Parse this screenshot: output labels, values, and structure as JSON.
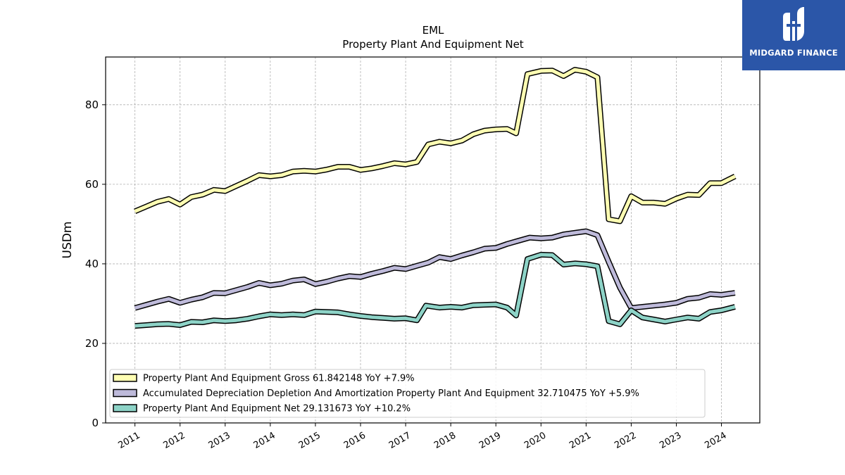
{
  "brand": {
    "name": "MIDGARD FINANCE",
    "color": "#2b56a8"
  },
  "chart_data": {
    "type": "line",
    "title": "EML",
    "subtitle": "Property Plant And Equipment Net",
    "xlabel": "",
    "ylabel": "USDm",
    "ylim": [
      0,
      92
    ],
    "yticks": [
      0,
      20,
      40,
      60,
      80
    ],
    "xlim": [
      2010.35,
      2024.85
    ],
    "xticks": [
      2011,
      2012,
      2013,
      2014,
      2015,
      2016,
      2017,
      2018,
      2019,
      2020,
      2021,
      2022,
      2023,
      2024
    ],
    "grid": true,
    "legend_position": "lower-left",
    "series": [
      {
        "name": "Property Plant And Equipment Gross",
        "legend": "Property Plant And Equipment Gross  61.842148 YoY +7.9%",
        "color": "#ffffb3",
        "points": [
          [
            2011.0,
            53.2
          ],
          [
            2011.25,
            54.4
          ],
          [
            2011.5,
            55.6
          ],
          [
            2011.75,
            56.3
          ],
          [
            2012.0,
            54.9
          ],
          [
            2012.25,
            56.8
          ],
          [
            2012.5,
            57.4
          ],
          [
            2012.75,
            58.6
          ],
          [
            2013.0,
            58.3
          ],
          [
            2013.25,
            59.6
          ],
          [
            2013.5,
            60.9
          ],
          [
            2013.75,
            62.3
          ],
          [
            2014.0,
            62.0
          ],
          [
            2014.25,
            62.3
          ],
          [
            2014.5,
            63.2
          ],
          [
            2014.75,
            63.4
          ],
          [
            2015.0,
            63.2
          ],
          [
            2015.25,
            63.7
          ],
          [
            2015.5,
            64.4
          ],
          [
            2015.75,
            64.4
          ],
          [
            2016.0,
            63.6
          ],
          [
            2016.25,
            64.0
          ],
          [
            2016.5,
            64.6
          ],
          [
            2016.75,
            65.3
          ],
          [
            2017.0,
            65.0
          ],
          [
            2017.25,
            65.6
          ],
          [
            2017.5,
            70.0
          ],
          [
            2017.75,
            70.7
          ],
          [
            2018.0,
            70.3
          ],
          [
            2018.25,
            71.0
          ],
          [
            2018.5,
            72.6
          ],
          [
            2018.75,
            73.5
          ],
          [
            2019.0,
            73.8
          ],
          [
            2019.25,
            73.9
          ],
          [
            2019.45,
            72.8
          ],
          [
            2019.7,
            87.7
          ],
          [
            2020.0,
            88.5
          ],
          [
            2020.25,
            88.6
          ],
          [
            2020.5,
            87.2
          ],
          [
            2020.75,
            88.8
          ],
          [
            2021.0,
            88.3
          ],
          [
            2021.25,
            86.9
          ],
          [
            2021.5,
            51.2
          ],
          [
            2021.75,
            50.7
          ],
          [
            2022.0,
            57.0
          ],
          [
            2022.25,
            55.4
          ],
          [
            2022.5,
            55.4
          ],
          [
            2022.75,
            55.1
          ],
          [
            2023.0,
            56.4
          ],
          [
            2023.25,
            57.4
          ],
          [
            2023.5,
            57.3
          ],
          [
            2023.75,
            60.3
          ],
          [
            2024.0,
            60.3
          ],
          [
            2024.3,
            62.0
          ]
        ]
      },
      {
        "name": "Accumulated Depreciation Depletion And Amortization Property Plant And Equipment",
        "legend": "Accumulated Depreciation Depletion And Amortization Property Plant And Equipment  32.710475 YoY +5.9%",
        "color": "#bebada",
        "points": [
          [
            2011.0,
            28.9
          ],
          [
            2011.25,
            29.7
          ],
          [
            2011.5,
            30.5
          ],
          [
            2011.75,
            31.2
          ],
          [
            2012.0,
            30.2
          ],
          [
            2012.25,
            31.0
          ],
          [
            2012.5,
            31.6
          ],
          [
            2012.75,
            32.7
          ],
          [
            2013.0,
            32.6
          ],
          [
            2013.25,
            33.4
          ],
          [
            2013.5,
            34.2
          ],
          [
            2013.75,
            35.2
          ],
          [
            2014.0,
            34.6
          ],
          [
            2014.25,
            35.0
          ],
          [
            2014.5,
            35.8
          ],
          [
            2014.75,
            36.1
          ],
          [
            2015.0,
            34.9
          ],
          [
            2015.25,
            35.5
          ],
          [
            2015.5,
            36.3
          ],
          [
            2015.75,
            36.9
          ],
          [
            2016.0,
            36.7
          ],
          [
            2016.25,
            37.5
          ],
          [
            2016.5,
            38.2
          ],
          [
            2016.75,
            39.0
          ],
          [
            2017.0,
            38.7
          ],
          [
            2017.25,
            39.5
          ],
          [
            2017.5,
            40.3
          ],
          [
            2017.75,
            41.7
          ],
          [
            2018.0,
            41.2
          ],
          [
            2018.25,
            42.1
          ],
          [
            2018.5,
            42.9
          ],
          [
            2018.75,
            43.8
          ],
          [
            2019.0,
            44.0
          ],
          [
            2019.25,
            45.0
          ],
          [
            2019.5,
            45.8
          ],
          [
            2019.75,
            46.6
          ],
          [
            2020.0,
            46.4
          ],
          [
            2020.25,
            46.6
          ],
          [
            2020.5,
            47.4
          ],
          [
            2020.75,
            47.8
          ],
          [
            2021.0,
            48.2
          ],
          [
            2021.25,
            47.2
          ],
          [
            2021.5,
            40.5
          ],
          [
            2021.75,
            34.0
          ],
          [
            2022.0,
            28.9
          ],
          [
            2022.25,
            29.2
          ],
          [
            2022.5,
            29.5
          ],
          [
            2022.75,
            29.8
          ],
          [
            2023.0,
            30.2
          ],
          [
            2023.25,
            31.2
          ],
          [
            2023.5,
            31.5
          ],
          [
            2023.75,
            32.4
          ],
          [
            2024.0,
            32.2
          ],
          [
            2024.3,
            32.7
          ]
        ]
      },
      {
        "name": "Property Plant And Equipment Net",
        "legend": "Property Plant And Equipment Net  29.131673 YoY +10.2%",
        "color": "#8dd3c7",
        "points": [
          [
            2011.0,
            24.4
          ],
          [
            2011.25,
            24.6
          ],
          [
            2011.5,
            24.8
          ],
          [
            2011.75,
            24.9
          ],
          [
            2012.0,
            24.6
          ],
          [
            2012.25,
            25.4
          ],
          [
            2012.5,
            25.3
          ],
          [
            2012.75,
            25.8
          ],
          [
            2013.0,
            25.6
          ],
          [
            2013.25,
            25.8
          ],
          [
            2013.5,
            26.2
          ],
          [
            2013.75,
            26.8
          ],
          [
            2014.0,
            27.3
          ],
          [
            2014.25,
            27.1
          ],
          [
            2014.5,
            27.3
          ],
          [
            2014.75,
            27.1
          ],
          [
            2015.0,
            28.0
          ],
          [
            2015.25,
            27.9
          ],
          [
            2015.5,
            27.8
          ],
          [
            2015.75,
            27.3
          ],
          [
            2016.0,
            26.9
          ],
          [
            2016.25,
            26.6
          ],
          [
            2016.5,
            26.4
          ],
          [
            2016.75,
            26.2
          ],
          [
            2017.0,
            26.3
          ],
          [
            2017.25,
            25.8
          ],
          [
            2017.45,
            29.5
          ],
          [
            2017.75,
            29.0
          ],
          [
            2018.0,
            29.2
          ],
          [
            2018.25,
            29.0
          ],
          [
            2018.5,
            29.6
          ],
          [
            2018.75,
            29.7
          ],
          [
            2019.0,
            29.8
          ],
          [
            2019.25,
            29.0
          ],
          [
            2019.45,
            27.0
          ],
          [
            2019.7,
            41.2
          ],
          [
            2020.0,
            42.3
          ],
          [
            2020.25,
            42.2
          ],
          [
            2020.5,
            39.8
          ],
          [
            2020.75,
            40.1
          ],
          [
            2021.0,
            39.9
          ],
          [
            2021.25,
            39.4
          ],
          [
            2021.5,
            25.6
          ],
          [
            2021.75,
            24.8
          ],
          [
            2022.0,
            28.3
          ],
          [
            2022.25,
            26.5
          ],
          [
            2022.5,
            26.0
          ],
          [
            2022.75,
            25.5
          ],
          [
            2023.0,
            26.0
          ],
          [
            2023.25,
            26.5
          ],
          [
            2023.5,
            26.2
          ],
          [
            2023.75,
            27.9
          ],
          [
            2024.0,
            28.3
          ],
          [
            2024.3,
            29.2
          ]
        ]
      }
    ]
  }
}
